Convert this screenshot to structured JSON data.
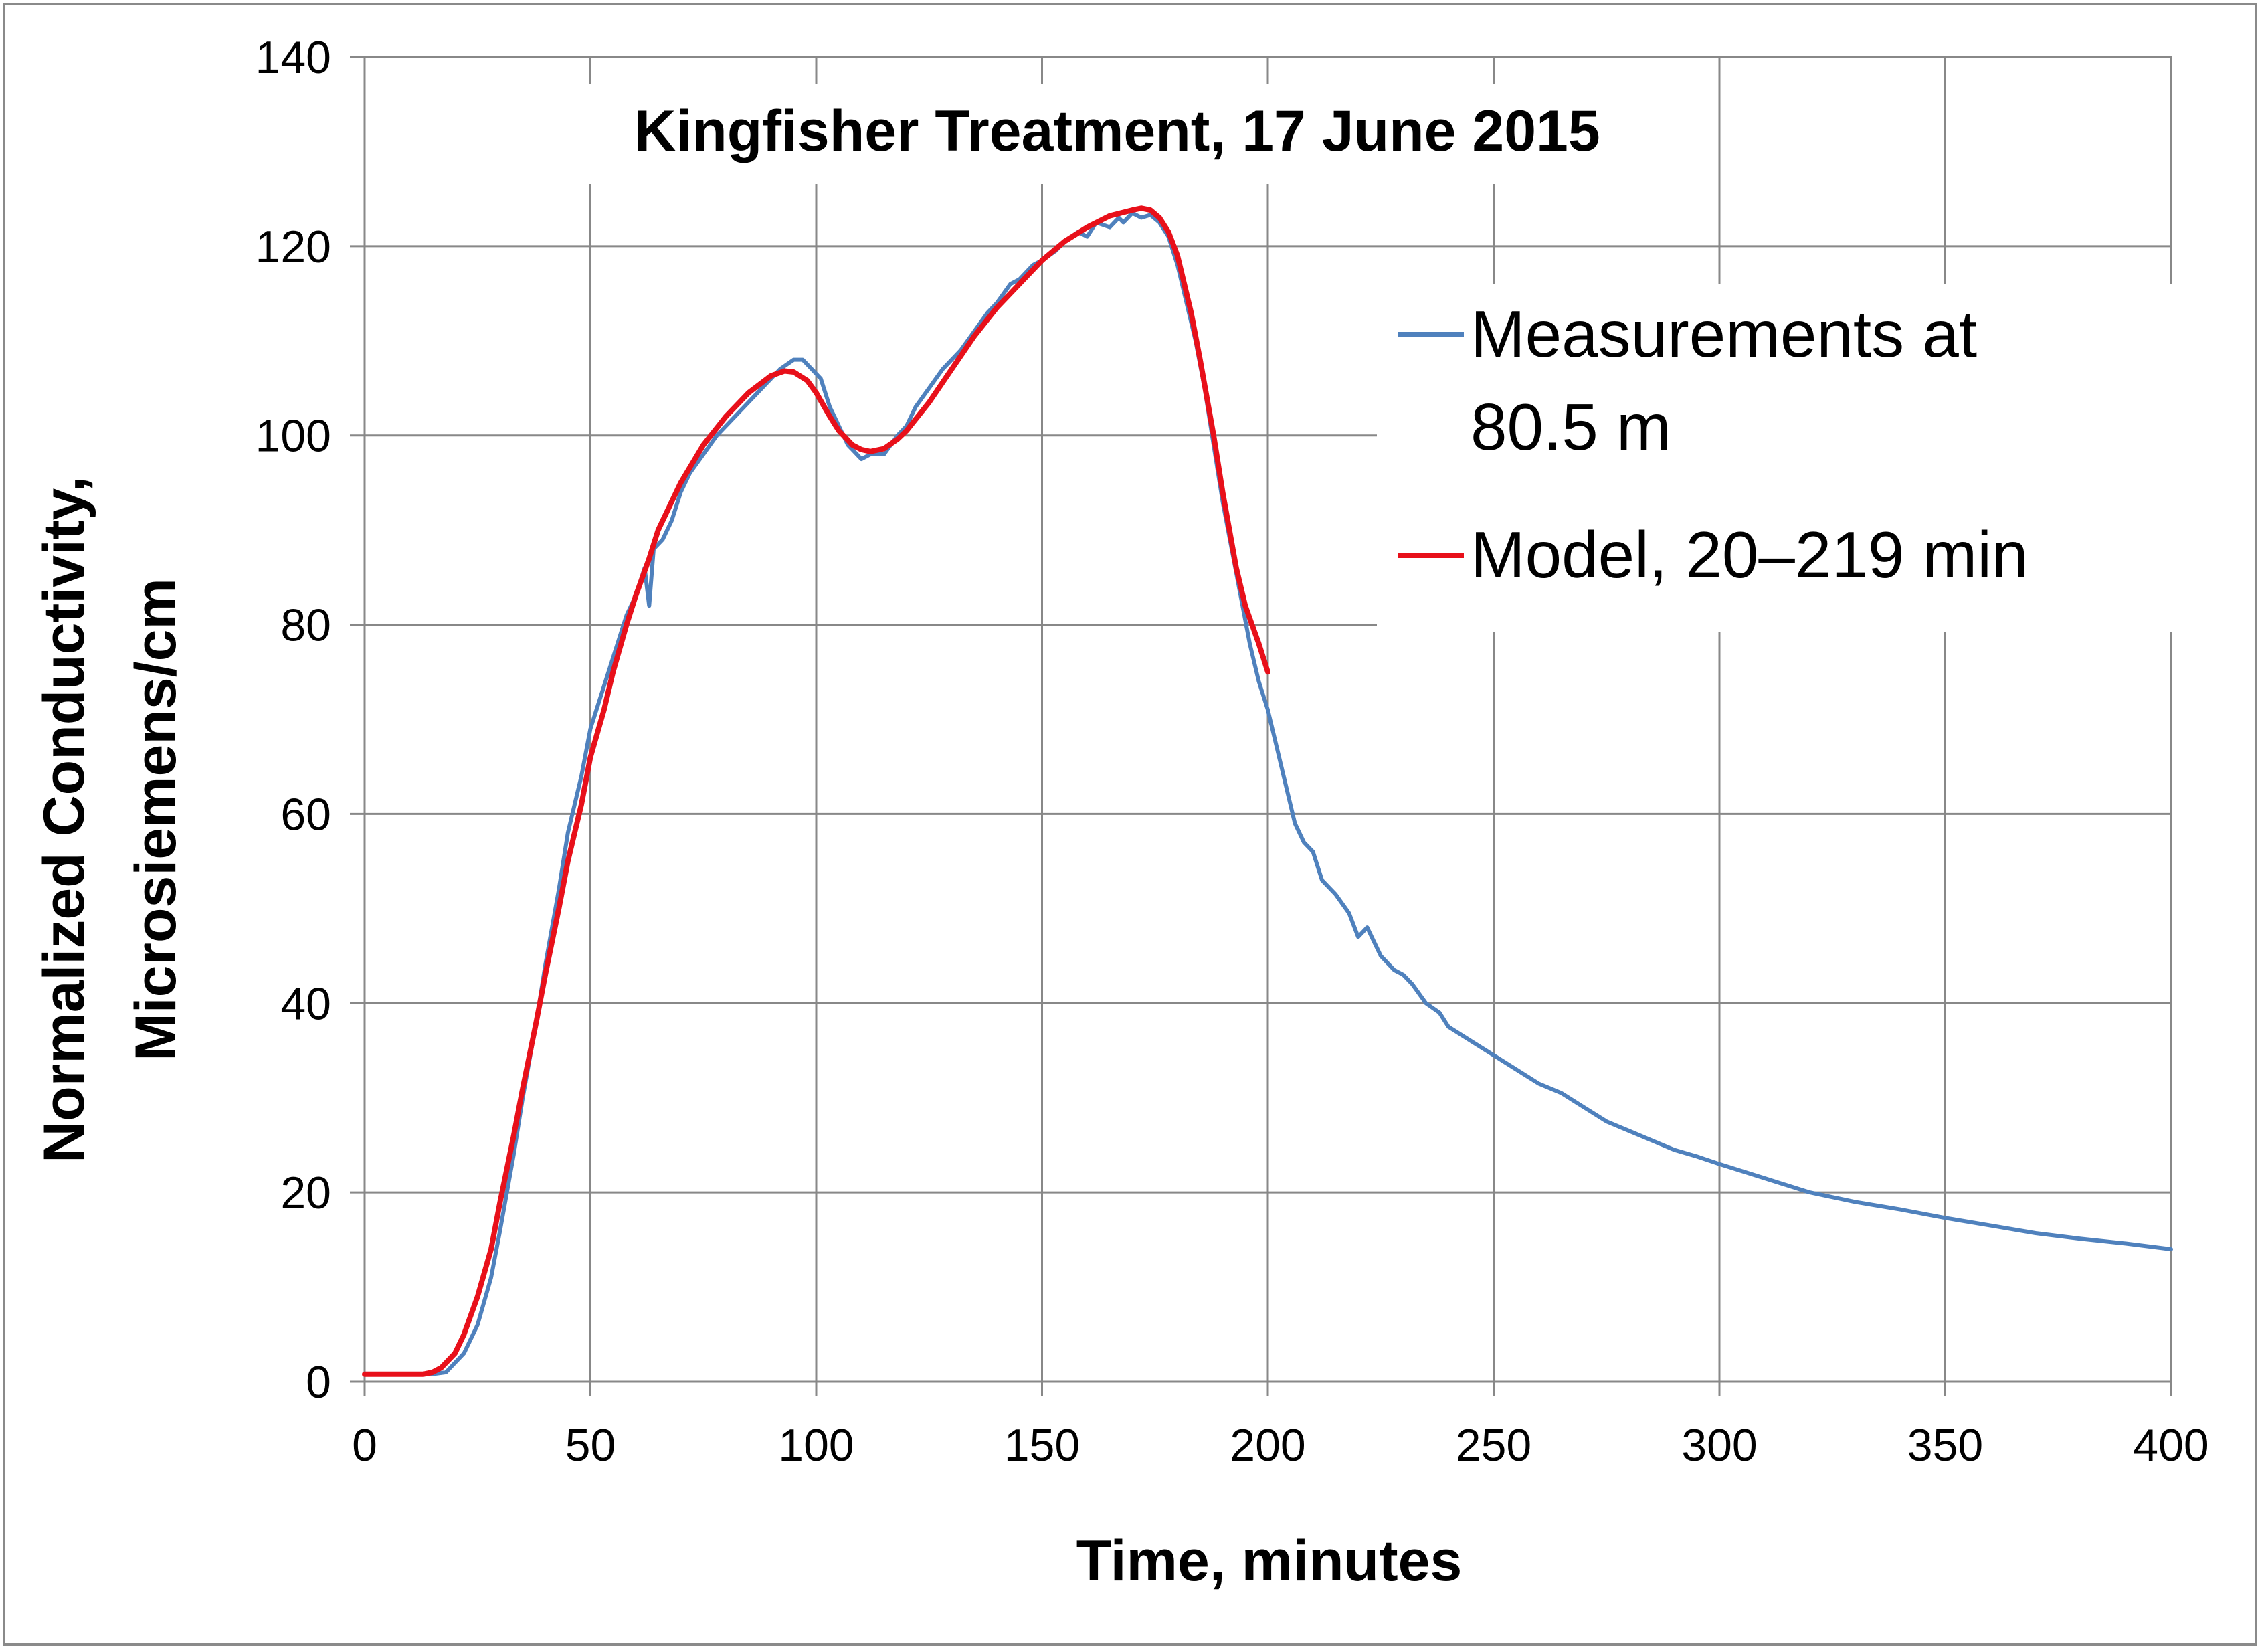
{
  "chart_data": {
    "type": "line",
    "title": "Kingfisher Treatment,  17 June 2015",
    "xlabel": "Time, minutes",
    "ylabel": [
      "Normalized Conductivity,",
      "Microsiemens/cm"
    ],
    "xlim": [
      0,
      400
    ],
    "ylim": [
      0,
      140
    ],
    "x_ticks": [
      0,
      50,
      100,
      150,
      200,
      250,
      300,
      350,
      400
    ],
    "y_ticks": [
      0,
      20,
      40,
      60,
      80,
      100,
      120,
      140
    ],
    "grid": true,
    "legend_position": "right",
    "series": [
      {
        "name": "Measurements at 80.5 m",
        "legend_lines": [
          "Measurements at",
          "80.5 m"
        ],
        "color": "#4F81BD",
        "x": [
          0,
          5,
          10,
          15,
          18,
          20,
          22,
          25,
          28,
          30,
          33,
          35,
          38,
          40,
          43,
          45,
          48,
          50,
          52,
          54,
          56,
          58,
          60,
          62,
          63,
          64,
          66,
          68,
          70,
          72,
          75,
          78,
          80,
          82,
          85,
          88,
          90,
          92,
          95,
          97,
          99,
          101,
          103,
          105,
          107,
          109,
          110,
          112,
          115,
          118,
          120,
          122,
          125,
          128,
          130,
          132,
          135,
          138,
          140,
          143,
          145,
          148,
          150,
          153,
          155,
          158,
          160,
          162,
          165,
          167,
          168,
          170,
          172,
          174,
          176,
          178,
          180,
          182,
          184,
          186,
          188,
          190,
          192,
          194,
          196,
          198,
          200,
          202,
          204,
          206,
          208,
          210,
          212,
          215,
          218,
          220,
          222,
          225,
          228,
          230,
          232,
          235,
          238,
          240,
          245,
          250,
          255,
          260,
          265,
          270,
          275,
          280,
          285,
          290,
          295,
          300,
          310,
          320,
          330,
          340,
          350,
          360,
          370,
          380,
          390,
          400
        ],
        "y": [
          0.8,
          0.8,
          0.8,
          0.8,
          1.0,
          2,
          3,
          6,
          11,
          16,
          24,
          30,
          38,
          44,
          52,
          58,
          64,
          69,
          72,
          75,
          78,
          81,
          83,
          86,
          82,
          88,
          89,
          91,
          94,
          96,
          98,
          100,
          101,
          102,
          103.5,
          105,
          106,
          107,
          108,
          108,
          107,
          106,
          103,
          101,
          99,
          98,
          97.5,
          98,
          98,
          100,
          101,
          103,
          105,
          107,
          108,
          109,
          111,
          113,
          114,
          116,
          116.5,
          118,
          118.5,
          119.5,
          120.5,
          121.5,
          121,
          122.5,
          122,
          123,
          122.5,
          123.5,
          123,
          123.3,
          122.5,
          121,
          118,
          114,
          110,
          105,
          99,
          93,
          88,
          83,
          78,
          74,
          71,
          67,
          63,
          59,
          57,
          56,
          53,
          51.5,
          49.5,
          47,
          48,
          45,
          43.5,
          43,
          42,
          40,
          39,
          37.5,
          36,
          34.5,
          33,
          31.5,
          30.5,
          29,
          27.5,
          26.5,
          25.5,
          24.5,
          23.8,
          23,
          21.5,
          20,
          19,
          18.2,
          17.3,
          16.5,
          15.7,
          15.1,
          14.6,
          14.0
        ]
      },
      {
        "name": "Model, 20–219 min",
        "legend_lines": [
          "Model, 20–219 min"
        ],
        "color": "#E8101A",
        "x": [
          0,
          5,
          10,
          13,
          15,
          17,
          19,
          20,
          22,
          25,
          28,
          30,
          33,
          35,
          38,
          40,
          43,
          45,
          48,
          50,
          53,
          55,
          58,
          60,
          63,
          65,
          68,
          70,
          75,
          80,
          85,
          90,
          93,
          95,
          98,
          100,
          103,
          105,
          108,
          110,
          112,
          115,
          118,
          120,
          125,
          130,
          135,
          140,
          145,
          150,
          155,
          160,
          165,
          170,
          172,
          174,
          176,
          178,
          180,
          183,
          185,
          188,
          190,
          193,
          195,
          198,
          200
        ],
        "y": [
          0.8,
          0.8,
          0.8,
          0.8,
          1.0,
          1.5,
          2.5,
          3,
          5,
          9,
          14,
          19,
          26,
          31,
          38,
          43,
          50,
          55,
          61,
          66,
          71,
          75,
          80,
          83,
          87,
          90,
          93,
          95,
          99,
          102,
          104.5,
          106.3,
          106.8,
          106.7,
          105.8,
          104.5,
          102,
          100.5,
          99,
          98.5,
          98.3,
          98.6,
          99.6,
          100.5,
          103.5,
          107,
          110.5,
          113.5,
          116,
          118.5,
          120.5,
          122,
          123.2,
          123.8,
          124,
          123.8,
          123,
          121.5,
          119,
          113,
          108,
          100,
          94,
          86,
          82,
          78,
          75
        ]
      }
    ]
  }
}
